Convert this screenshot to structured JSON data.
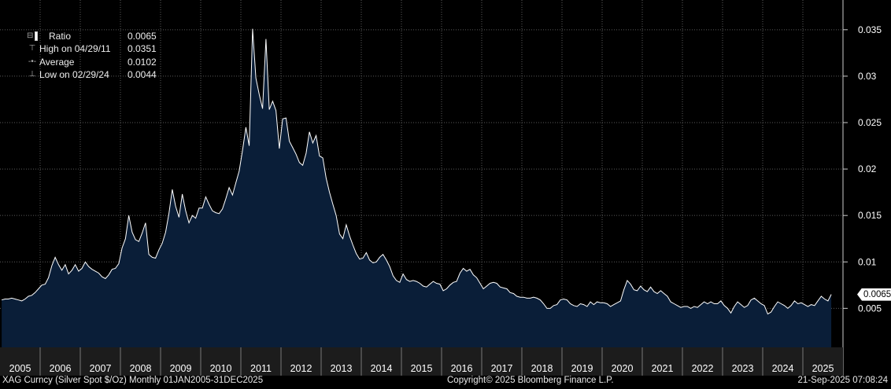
{
  "chart_data": {
    "type": "area",
    "series": [
      {
        "name": "Ratio",
        "color": "#ffffff",
        "fill": "#0a1e38",
        "points": [
          [
            "2005-01",
            0.0059
          ],
          [
            "2005-02",
            0.006
          ],
          [
            "2005-03",
            0.006
          ],
          [
            "2005-04",
            0.0061
          ],
          [
            "2005-05",
            0.006
          ],
          [
            "2005-06",
            0.0059
          ],
          [
            "2005-07",
            0.0058
          ],
          [
            "2005-08",
            0.006
          ],
          [
            "2005-09",
            0.0063
          ],
          [
            "2005-10",
            0.0064
          ],
          [
            "2005-11",
            0.0067
          ],
          [
            "2005-12",
            0.0071
          ],
          [
            "2006-01",
            0.0075
          ],
          [
            "2006-02",
            0.0076
          ],
          [
            "2006-03",
            0.0083
          ],
          [
            "2006-04",
            0.0096
          ],
          [
            "2006-05",
            0.0105
          ],
          [
            "2006-06",
            0.0097
          ],
          [
            "2006-07",
            0.0091
          ],
          [
            "2006-08",
            0.0097
          ],
          [
            "2006-09",
            0.0087
          ],
          [
            "2006-10",
            0.0091
          ],
          [
            "2006-11",
            0.0097
          ],
          [
            "2006-12",
            0.009
          ],
          [
            "2007-01",
            0.0093
          ],
          [
            "2007-02",
            0.01
          ],
          [
            "2007-03",
            0.0095
          ],
          [
            "2007-04",
            0.0092
          ],
          [
            "2007-05",
            0.009
          ],
          [
            "2007-06",
            0.0088
          ],
          [
            "2007-07",
            0.0084
          ],
          [
            "2007-08",
            0.0082
          ],
          [
            "2007-09",
            0.0086
          ],
          [
            "2007-10",
            0.0092
          ],
          [
            "2007-11",
            0.0093
          ],
          [
            "2007-12",
            0.0098
          ],
          [
            "2008-01",
            0.0115
          ],
          [
            "2008-02",
            0.0125
          ],
          [
            "2008-03",
            0.015
          ],
          [
            "2008-04",
            0.0132
          ],
          [
            "2008-05",
            0.0124
          ],
          [
            "2008-06",
            0.0122
          ],
          [
            "2008-07",
            0.0131
          ],
          [
            "2008-08",
            0.0142
          ],
          [
            "2008-09",
            0.0108
          ],
          [
            "2008-10",
            0.0105
          ],
          [
            "2008-11",
            0.0104
          ],
          [
            "2008-12",
            0.0113
          ],
          [
            "2009-01",
            0.012
          ],
          [
            "2009-02",
            0.0132
          ],
          [
            "2009-03",
            0.0152
          ],
          [
            "2009-04",
            0.0178
          ],
          [
            "2009-05",
            0.016
          ],
          [
            "2009-06",
            0.0148
          ],
          [
            "2009-07",
            0.0173
          ],
          [
            "2009-08",
            0.0155
          ],
          [
            "2009-09",
            0.0142
          ],
          [
            "2009-10",
            0.015
          ],
          [
            "2009-11",
            0.0147
          ],
          [
            "2009-12",
            0.0158
          ],
          [
            "2010-01",
            0.0158
          ],
          [
            "2010-02",
            0.017
          ],
          [
            "2010-03",
            0.0162
          ],
          [
            "2010-04",
            0.0155
          ],
          [
            "2010-05",
            0.0153
          ],
          [
            "2010-06",
            0.0152
          ],
          [
            "2010-07",
            0.0157
          ],
          [
            "2010-08",
            0.0168
          ],
          [
            "2010-09",
            0.018
          ],
          [
            "2010-10",
            0.0172
          ],
          [
            "2010-11",
            0.0185
          ],
          [
            "2010-12",
            0.0198
          ],
          [
            "2011-01",
            0.022
          ],
          [
            "2011-02",
            0.0245
          ],
          [
            "2011-03",
            0.0225
          ],
          [
            "2011-04",
            0.0351
          ],
          [
            "2011-05",
            0.0298
          ],
          [
            "2011-06",
            0.028
          ],
          [
            "2011-07",
            0.0265
          ],
          [
            "2011-08",
            0.034
          ],
          [
            "2011-09",
            0.0264
          ],
          [
            "2011-10",
            0.0273
          ],
          [
            "2011-11",
            0.0263
          ],
          [
            "2011-12",
            0.0222
          ],
          [
            "2012-01",
            0.0254
          ],
          [
            "2012-02",
            0.0255
          ],
          [
            "2012-03",
            0.023
          ],
          [
            "2012-04",
            0.0223
          ],
          [
            "2012-05",
            0.0216
          ],
          [
            "2012-06",
            0.0207
          ],
          [
            "2012-07",
            0.0204
          ],
          [
            "2012-08",
            0.0217
          ],
          [
            "2012-09",
            0.024
          ],
          [
            "2012-10",
            0.0228
          ],
          [
            "2012-11",
            0.0236
          ],
          [
            "2012-12",
            0.0214
          ],
          [
            "2013-01",
            0.0212
          ],
          [
            "2013-02",
            0.019
          ],
          [
            "2013-03",
            0.0175
          ],
          [
            "2013-04",
            0.0162
          ],
          [
            "2013-05",
            0.015
          ],
          [
            "2013-06",
            0.013
          ],
          [
            "2013-07",
            0.0125
          ],
          [
            "2013-08",
            0.014
          ],
          [
            "2013-09",
            0.0128
          ],
          [
            "2013-10",
            0.0118
          ],
          [
            "2013-11",
            0.0109
          ],
          [
            "2013-12",
            0.0103
          ],
          [
            "2014-01",
            0.0104
          ],
          [
            "2014-02",
            0.011
          ],
          [
            "2014-03",
            0.0102
          ],
          [
            "2014-04",
            0.0099
          ],
          [
            "2014-05",
            0.01
          ],
          [
            "2014-06",
            0.0105
          ],
          [
            "2014-07",
            0.0108
          ],
          [
            "2014-08",
            0.0102
          ],
          [
            "2014-09",
            0.0095
          ],
          [
            "2014-10",
            0.0085
          ],
          [
            "2014-11",
            0.008
          ],
          [
            "2014-12",
            0.0078
          ],
          [
            "2015-01",
            0.0087
          ],
          [
            "2015-02",
            0.0081
          ],
          [
            "2015-03",
            0.0079
          ],
          [
            "2015-04",
            0.008
          ],
          [
            "2015-05",
            0.0079
          ],
          [
            "2015-06",
            0.0077
          ],
          [
            "2015-07",
            0.0074
          ],
          [
            "2015-08",
            0.0073
          ],
          [
            "2015-09",
            0.0076
          ],
          [
            "2015-10",
            0.0079
          ],
          [
            "2015-11",
            0.0077
          ],
          [
            "2015-12",
            0.0076
          ],
          [
            "2016-01",
            0.0069
          ],
          [
            "2016-02",
            0.0071
          ],
          [
            "2016-03",
            0.0075
          ],
          [
            "2016-04",
            0.0078
          ],
          [
            "2016-05",
            0.0079
          ],
          [
            "2016-06",
            0.0088
          ],
          [
            "2016-07",
            0.0093
          ],
          [
            "2016-08",
            0.009
          ],
          [
            "2016-09",
            0.0092
          ],
          [
            "2016-10",
            0.0086
          ],
          [
            "2016-11",
            0.0083
          ],
          [
            "2016-12",
            0.0077
          ],
          [
            "2017-01",
            0.0071
          ],
          [
            "2017-02",
            0.0074
          ],
          [
            "2017-03",
            0.0077
          ],
          [
            "2017-04",
            0.0078
          ],
          [
            "2017-05",
            0.0077
          ],
          [
            "2017-06",
            0.0073
          ],
          [
            "2017-07",
            0.0072
          ],
          [
            "2017-08",
            0.0071
          ],
          [
            "2017-09",
            0.0067
          ],
          [
            "2017-10",
            0.0066
          ],
          [
            "2017-11",
            0.0063
          ],
          [
            "2017-12",
            0.0062
          ],
          [
            "2018-01",
            0.0062
          ],
          [
            "2018-02",
            0.0061
          ],
          [
            "2018-03",
            0.0061
          ],
          [
            "2018-04",
            0.0062
          ],
          [
            "2018-05",
            0.0061
          ],
          [
            "2018-06",
            0.0059
          ],
          [
            "2018-07",
            0.0055
          ],
          [
            "2018-08",
            0.005
          ],
          [
            "2018-09",
            0.005
          ],
          [
            "2018-10",
            0.0053
          ],
          [
            "2018-11",
            0.0054
          ],
          [
            "2018-12",
            0.0059
          ],
          [
            "2019-01",
            0.006
          ],
          [
            "2019-02",
            0.0059
          ],
          [
            "2019-03",
            0.0055
          ],
          [
            "2019-04",
            0.0053
          ],
          [
            "2019-05",
            0.0052
          ],
          [
            "2019-06",
            0.0055
          ],
          [
            "2019-07",
            0.0054
          ],
          [
            "2019-08",
            0.0052
          ],
          [
            "2019-09",
            0.0057
          ],
          [
            "2019-10",
            0.0054
          ],
          [
            "2019-11",
            0.0057
          ],
          [
            "2019-12",
            0.0056
          ],
          [
            "2020-01",
            0.0056
          ],
          [
            "2020-02",
            0.0055
          ],
          [
            "2020-03",
            0.0052
          ],
          [
            "2020-04",
            0.0054
          ],
          [
            "2020-05",
            0.0056
          ],
          [
            "2020-06",
            0.0058
          ],
          [
            "2020-07",
            0.007
          ],
          [
            "2020-08",
            0.008
          ],
          [
            "2020-09",
            0.0076
          ],
          [
            "2020-10",
            0.007
          ],
          [
            "2020-11",
            0.0069
          ],
          [
            "2020-12",
            0.0074
          ],
          [
            "2021-01",
            0.007
          ],
          [
            "2021-02",
            0.0068
          ],
          [
            "2021-03",
            0.0073
          ],
          [
            "2021-04",
            0.0068
          ],
          [
            "2021-05",
            0.0066
          ],
          [
            "2021-06",
            0.0069
          ],
          [
            "2021-07",
            0.0066
          ],
          [
            "2021-08",
            0.0063
          ],
          [
            "2021-09",
            0.0057
          ],
          [
            "2021-10",
            0.0055
          ],
          [
            "2021-11",
            0.0053
          ],
          [
            "2021-12",
            0.0051
          ],
          [
            "2022-01",
            0.0052
          ],
          [
            "2022-02",
            0.0052
          ],
          [
            "2022-03",
            0.005
          ],
          [
            "2022-04",
            0.0052
          ],
          [
            "2022-05",
            0.0051
          ],
          [
            "2022-06",
            0.0054
          ],
          [
            "2022-07",
            0.0057
          ],
          [
            "2022-08",
            0.0055
          ],
          [
            "2022-09",
            0.0057
          ],
          [
            "2022-10",
            0.0055
          ],
          [
            "2022-11",
            0.0055
          ],
          [
            "2022-12",
            0.0058
          ],
          [
            "2023-01",
            0.0053
          ],
          [
            "2023-02",
            0.005
          ],
          [
            "2023-03",
            0.0045
          ],
          [
            "2023-04",
            0.0052
          ],
          [
            "2023-05",
            0.0057
          ],
          [
            "2023-06",
            0.0054
          ],
          [
            "2023-07",
            0.0051
          ],
          [
            "2023-08",
            0.0053
          ],
          [
            "2023-09",
            0.0059
          ],
          [
            "2023-10",
            0.0061
          ],
          [
            "2023-11",
            0.0058
          ],
          [
            "2023-12",
            0.0055
          ],
          [
            "2024-01",
            0.0053
          ],
          [
            "2024-02",
            0.0044
          ],
          [
            "2024-03",
            0.0046
          ],
          [
            "2024-04",
            0.0052
          ],
          [
            "2024-05",
            0.0057
          ],
          [
            "2024-06",
            0.0055
          ],
          [
            "2024-07",
            0.0053
          ],
          [
            "2024-08",
            0.005
          ],
          [
            "2024-09",
            0.0053
          ],
          [
            "2024-10",
            0.0058
          ],
          [
            "2024-11",
            0.0055
          ],
          [
            "2024-12",
            0.0056
          ],
          [
            "2025-01",
            0.0054
          ],
          [
            "2025-02",
            0.0052
          ],
          [
            "2025-03",
            0.0054
          ],
          [
            "2025-04",
            0.0053
          ],
          [
            "2025-05",
            0.0058
          ],
          [
            "2025-06",
            0.0063
          ],
          [
            "2025-07",
            0.006
          ],
          [
            "2025-08",
            0.0058
          ],
          [
            "2025-09",
            0.0065
          ]
        ]
      }
    ],
    "x_ticks": [
      "2005",
      "2006",
      "2007",
      "2008",
      "2009",
      "2010",
      "2011",
      "2012",
      "2013",
      "2014",
      "2015",
      "2016",
      "2017",
      "2018",
      "2019",
      "2020",
      "2021",
      "2022",
      "2023",
      "2024",
      "2025"
    ],
    "y_ticks": [
      {
        "value": 0.005,
        "label": "0.005"
      },
      {
        "value": 0.01,
        "label": "0.01"
      },
      {
        "value": 0.015,
        "label": "0.015"
      },
      {
        "value": 0.02,
        "label": "0.02"
      },
      {
        "value": 0.025,
        "label": "0.025"
      },
      {
        "value": 0.03,
        "label": "0.03"
      },
      {
        "value": 0.035,
        "label": "0.035"
      }
    ],
    "xlim": [
      "2005-01",
      "2025-12"
    ],
    "ylim": [
      0.0008,
      0.0382
    ],
    "y_axis_side": "right",
    "grid": true,
    "last_value_label": "0.0065",
    "legend_placement": "top-left",
    "legend": [
      {
        "label": "Ratio",
        "value": "0.0065",
        "marker": "box"
      },
      {
        "label": "High on 04/29/11",
        "value": "0.0351",
        "marker": "high"
      },
      {
        "label": "Average",
        "value": "0.0102",
        "marker": "avg"
      },
      {
        "label": "Low on 02/29/24",
        "value": "0.0044",
        "marker": "low"
      }
    ]
  },
  "footer": {
    "left": "XAG Curncy (Silver Spot  $/Oz)  Monthly 01JAN2005-31DEC2025",
    "center": "Copyright© 2025 Bloomberg Finance L.P.",
    "right": "21-Sep-2025 07:08:24"
  },
  "colors": {
    "background": "#000000",
    "area_fill": "#0a1e38",
    "line": "#ffffff",
    "grid": "#5a5a5a",
    "axis_strip": "#1c1c1c"
  }
}
